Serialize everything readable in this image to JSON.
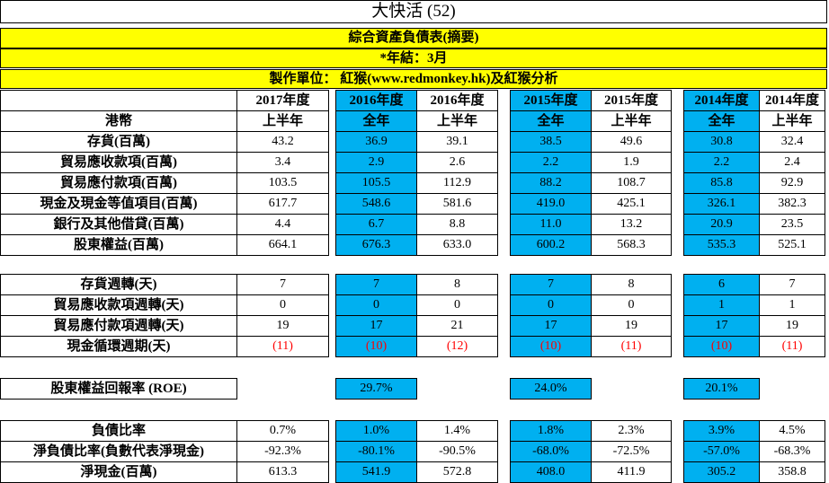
{
  "title": "大快活 (52)",
  "subtitle": "綜合資產負債表(摘要)",
  "year_end": "*年結：3月",
  "producer": "製作單位： 紅猴(www.redmonkey.hk)及紅猴分析",
  "currency_label": "港幣",
  "columns": [
    {
      "year": "2017年度",
      "period": "上半年"
    },
    {
      "year": "2016年度",
      "period": "全年"
    },
    {
      "year": "2016年度",
      "period": "上半年"
    },
    {
      "year": "2015年度",
      "period": "全年"
    },
    {
      "year": "2015年度",
      "period": "上半年"
    },
    {
      "year": "2014年度",
      "period": "全年"
    },
    {
      "year": "2014年度",
      "period": "上半年"
    }
  ],
  "balance_rows": [
    {
      "label": "存貨(百萬)",
      "values": [
        "43.2",
        "36.9",
        "39.1",
        "38.5",
        "49.6",
        "30.8",
        "32.4"
      ]
    },
    {
      "label": "貿易應收款項(百萬)",
      "values": [
        "3.4",
        "2.9",
        "2.6",
        "2.2",
        "1.9",
        "2.2",
        "2.4"
      ]
    },
    {
      "label": "貿易應付款項(百萬)",
      "values": [
        "103.5",
        "105.5",
        "112.9",
        "88.2",
        "108.7",
        "85.8",
        "92.9"
      ]
    },
    {
      "label": "現金及現金等值項目(百萬)",
      "values": [
        "617.7",
        "548.6",
        "581.6",
        "419.0",
        "425.1",
        "326.1",
        "382.3"
      ]
    },
    {
      "label": "銀行及其他借貸(百萬)",
      "values": [
        "4.4",
        "6.7",
        "8.8",
        "11.0",
        "13.2",
        "20.9",
        "23.5"
      ]
    },
    {
      "label": "股東權益(百萬)",
      "values": [
        "664.1",
        "676.3",
        "633.0",
        "600.2",
        "568.3",
        "535.3",
        "525.1"
      ]
    }
  ],
  "turnover_rows": [
    {
      "label": "存貨週轉(天)",
      "values": [
        "7",
        "7",
        "8",
        "7",
        "8",
        "6",
        "7"
      ]
    },
    {
      "label": "貿易應收款項週轉(天)",
      "values": [
        "0",
        "0",
        "0",
        "0",
        "0",
        "1",
        "1"
      ]
    },
    {
      "label": "貿易應付款項週轉(天)",
      "values": [
        "19",
        "17",
        "21",
        "17",
        "19",
        "17",
        "19"
      ]
    },
    {
      "label": "現金循環週期(天)",
      "values": [
        "(11)",
        "(10)",
        "(12)",
        "(10)",
        "(11)",
        "(10)",
        "(11)"
      ]
    }
  ],
  "roe": {
    "label": "股東權益回報率 (ROE)",
    "values": [
      "29.7%",
      "24.0%",
      "20.1%"
    ]
  },
  "debt_rows": [
    {
      "label": "負債比率",
      "values": [
        "0.7%",
        "1.0%",
        "1.4%",
        "1.8%",
        "2.3%",
        "3.9%",
        "4.5%"
      ]
    },
    {
      "label": "淨負債比率(負數代表淨現金)",
      "values": [
        "-92.3%",
        "-80.1%",
        "-90.5%",
        "-68.0%",
        "-72.5%",
        "-57.0%",
        "-68.3%"
      ]
    },
    {
      "label": "淨現金(百萬)",
      "values": [
        "613.3",
        "541.9",
        "572.8",
        "408.0",
        "411.9",
        "305.2",
        "358.8"
      ]
    }
  ],
  "colors": {
    "highlight_yellow": "#ffff00",
    "full_year_blue": "#00b0f0",
    "negative_red": "#ff0000"
  }
}
